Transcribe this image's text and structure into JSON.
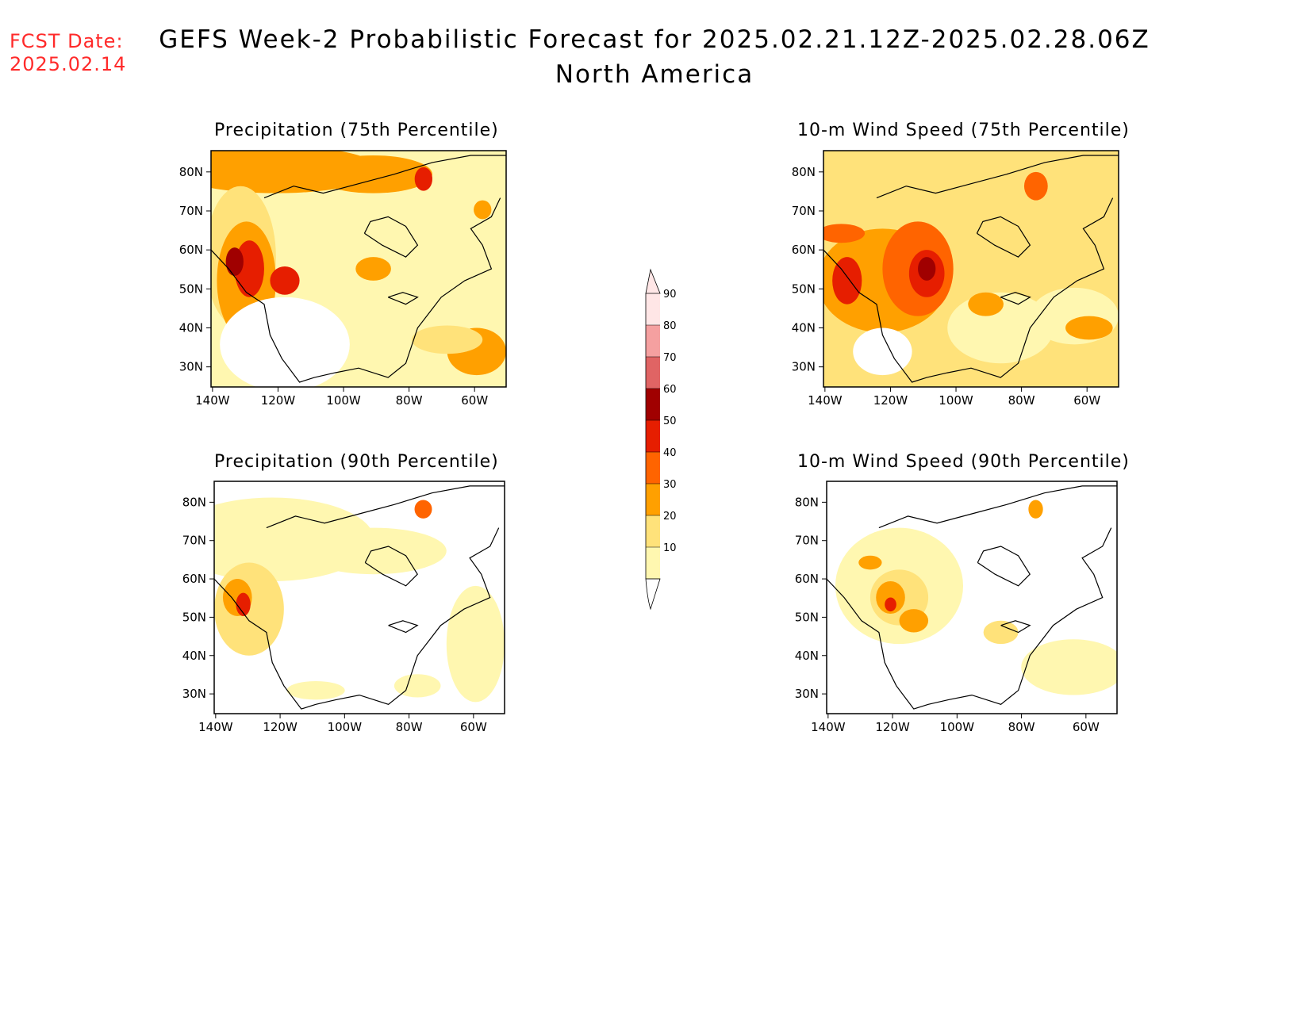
{
  "header": {
    "fcst_label": "FCST Date:",
    "fcst_date": "2025.02.14",
    "title": "GEFS Week-2 Probabilistic Forecast for 2025.02.21.12Z-2025.02.28.06Z",
    "subtitle": "North America"
  },
  "panels": [
    {
      "id": "precip75",
      "title": "Precipitation (75th Percentile)"
    },
    {
      "id": "wind75",
      "title": "10-m Wind Speed (75th Percentile)"
    },
    {
      "id": "precip90",
      "title": "Precipitation (90th Percentile)"
    },
    {
      "id": "wind90",
      "title": "10-m Wind Speed (90th Percentile)"
    }
  ],
  "axes": {
    "lat_labels": [
      "80N",
      "70N",
      "60N",
      "50N",
      "40N",
      "30N"
    ],
    "lon_labels": [
      "140W",
      "120W",
      "100W",
      "80W",
      "60W"
    ]
  },
  "colorbar": {
    "levels": [
      "10",
      "20",
      "30",
      "40",
      "50",
      "60",
      "70",
      "80",
      "90"
    ],
    "colors": [
      "#fff7b0",
      "#ffe27a",
      "#ffa000",
      "#ff6400",
      "#e61e00",
      "#a00000",
      "#e06464",
      "#f5a0a0",
      "#ffe6e6"
    ]
  }
}
